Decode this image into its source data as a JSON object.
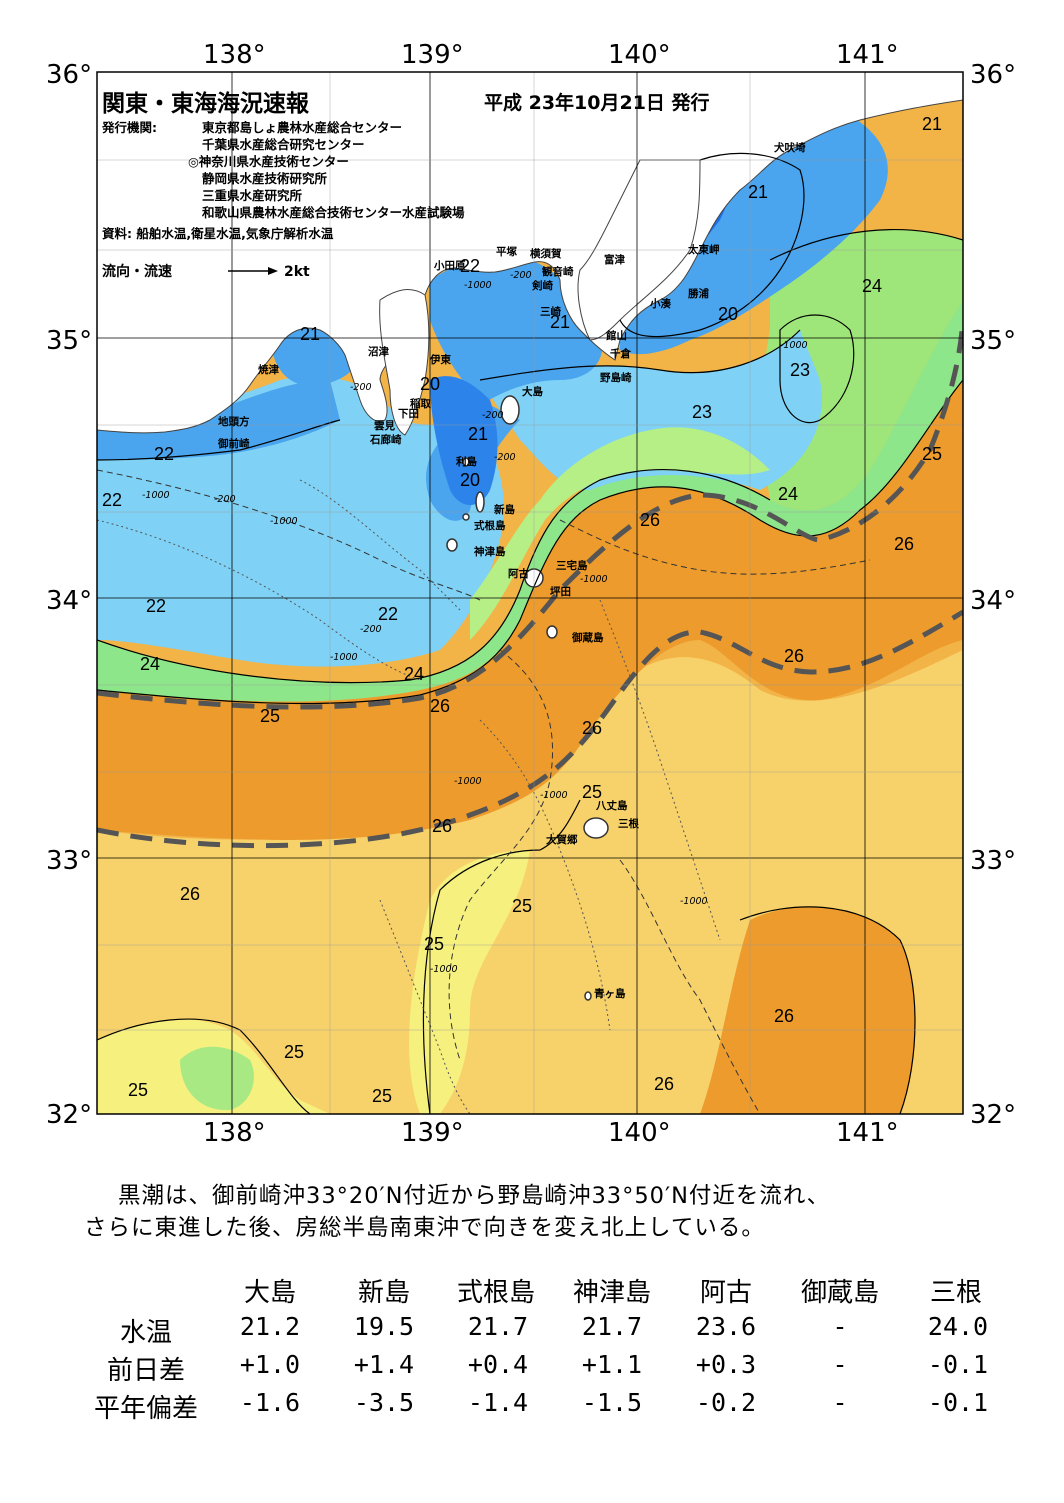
{
  "map": {
    "title": "関東・東海海況速報",
    "issue_date": "平成 23年10月21日 発行",
    "publisher_label": "発行機関:",
    "publishers": [
      "東京都島しょ農林水産総合センター",
      "千葉県水産総合研究センター",
      "◎神奈川県水産技術センター",
      "静岡県水産技術研究所",
      "三重県水産研究所",
      "和歌山県農林水産総合技術センター水産試験場"
    ],
    "source": "資料: 船舶水温,衛星水温,気象庁解析水温",
    "legend_flow": "流向・流速",
    "legend_speed": "2kt",
    "lon_ticks": [
      "138°",
      "139°",
      "140°",
      "141°"
    ],
    "lat_ticks": [
      "36°",
      "35°",
      "34°",
      "33°",
      "32°"
    ],
    "places": [
      "犬吠埼",
      "太東岬",
      "勝浦",
      "小湊",
      "富津",
      "館山",
      "千倉",
      "野島崎",
      "横須賀",
      "観音崎",
      "剣崎",
      "三崎",
      "平塚",
      "小田原",
      "沼津",
      "伊東",
      "稲取",
      "下田",
      "雲見",
      "石廊崎",
      "焼津",
      "地頭方",
      "御前崎",
      "大島",
      "利島",
      "新島",
      "式根島",
      "神津島",
      "三宅島",
      "阿古",
      "坪田",
      "御蔵島",
      "八丈島",
      "三根",
      "大賀郷",
      "青ヶ島"
    ],
    "isotherm_labels": [
      "21",
      "21",
      "22",
      "24",
      "21",
      "20",
      "23",
      "23",
      "25",
      "24",
      "26",
      "26",
      "20",
      "21",
      "21",
      "20",
      "22",
      "22",
      "22",
      "22",
      "24",
      "24",
      "25",
      "26",
      "26",
      "26",
      "25",
      "26",
      "25",
      "26",
      "26",
      "25",
      "25",
      "25",
      "25",
      "26",
      "25",
      "26"
    ],
    "depth_labels": [
      "-200",
      "-1000",
      "-200",
      "-1000",
      "-200",
      "-200",
      "-1000",
      "-200",
      "-1000",
      "-1000",
      "-1000",
      "-1000",
      "-200",
      "-1000",
      "-1000",
      "-1000"
    ],
    "colors": {
      "land": "#ffffff",
      "blue_deep": "#1f6fe6",
      "blue_mid": "#4aa5ee",
      "cyan": "#7fd2f5",
      "green": "#8ee68a",
      "yellow": "#f6f07e",
      "light_orange": "#f7d26a",
      "orange": "#f2b347",
      "deep_orange": "#ec9b2c",
      "kuroshio_axis": "#555555"
    }
  },
  "summary": [
    "黒潮は、御前崎沖33°20′N付近から野島崎沖33°50′N付近を流れ、",
    "さらに東進した後、房総半島南東沖で向きを変え北上している。"
  ],
  "table": {
    "headers": [
      "大島",
      "新島",
      "式根島",
      "神津島",
      "阿古",
      "御蔵島",
      "三根"
    ],
    "rows": [
      {
        "label": "水温",
        "values": [
          "21.2",
          "19.5",
          "21.7",
          "21.7",
          "23.6",
          "-",
          "24.0"
        ]
      },
      {
        "label": "前日差",
        "values": [
          "+1.0",
          "+1.4",
          "+0.4",
          "+1.1",
          "+0.3",
          "-",
          "-0.1"
        ]
      },
      {
        "label": "平年偏差",
        "values": [
          "-1.6",
          "-3.5",
          "-1.4",
          "-1.5",
          "-0.2",
          "-",
          "-0.1"
        ]
      }
    ]
  }
}
